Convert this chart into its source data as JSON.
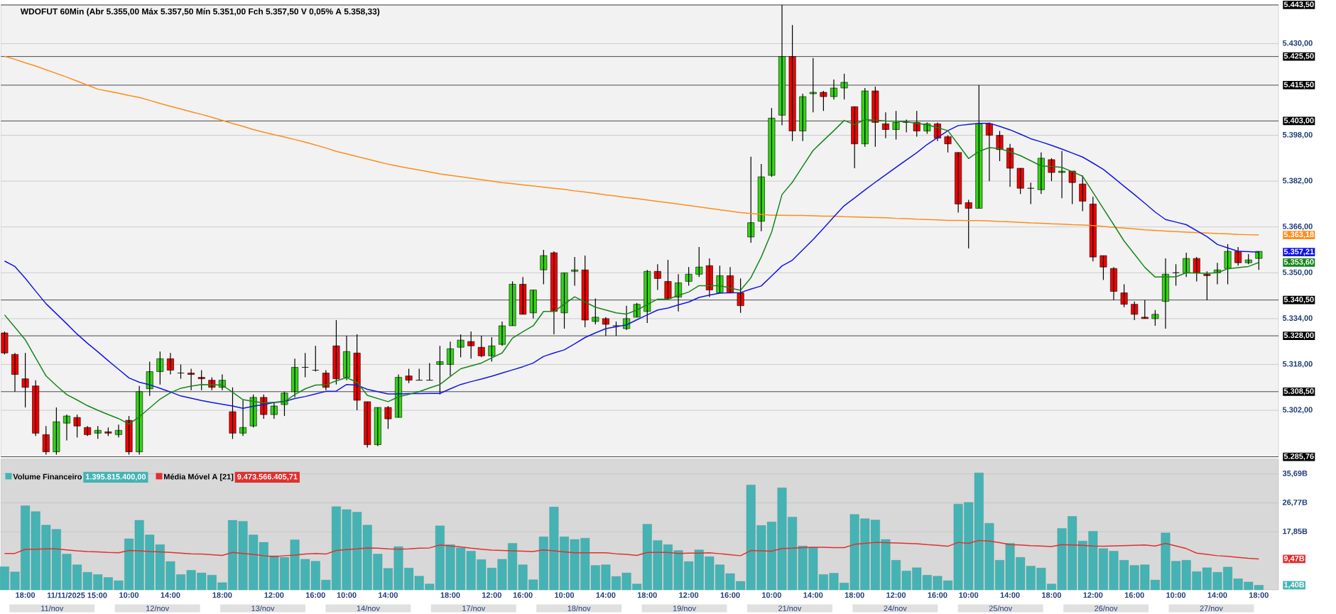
{
  "chart_data": [
    {
      "type": "candlestick",
      "title": "WDOFUT 60Min (Abr 5.355,00 Máx 5.357,50 Mín 5.351,00 Fch 5.357,50 V 0,05% A 5.358,33)",
      "categories": [
        null,
        null,
        null,
        null,
        null,
        null,
        null,
        null,
        null,
        null,
        null,
        null,
        null,
        null,
        null,
        null,
        null,
        null,
        null,
        null,
        null,
        null,
        null,
        null,
        null,
        null,
        null,
        null,
        null,
        null,
        null,
        null,
        null,
        null,
        null,
        null,
        null,
        null,
        null,
        null,
        null,
        null,
        null,
        null,
        null,
        null,
        null,
        null,
        null,
        null,
        null,
        null,
        null,
        null,
        null,
        null,
        null,
        null,
        null,
        null,
        null,
        null,
        null,
        null,
        null,
        null,
        null,
        null,
        null,
        null,
        null,
        null,
        null,
        null,
        null,
        null,
        null,
        null,
        null,
        null,
        null,
        null,
        null,
        null,
        null,
        null,
        null,
        null,
        null,
        null,
        null,
        null,
        null,
        null,
        null,
        null,
        null,
        null,
        null,
        null,
        null,
        null,
        null,
        null,
        null,
        null,
        null,
        null,
        null,
        null,
        null,
        null,
        null,
        null,
        null,
        null,
        null,
        null,
        null,
        null,
        null,
        null
      ],
      "ohlc": [
        [
          5329,
          5329.5,
          5321.5,
          5322
        ],
        [
          5321.5,
          5322,
          5308.5,
          5314.5
        ],
        [
          5313,
          5322,
          5303,
          5310
        ],
        [
          5310.5,
          5312.5,
          5293,
          5294
        ],
        [
          5293.5,
          5296.5,
          5286.5,
          5287.5
        ],
        [
          5287.5,
          5303,
          5286.5,
          5298
        ],
        [
          5297.5,
          5300.5,
          5291.5,
          5300
        ],
        [
          5299.5,
          5300.5,
          5292.5,
          5296.5
        ],
        [
          5296,
          5296.5,
          5293,
          5293.5
        ],
        [
          5294,
          5296.5,
          5292,
          5295
        ],
        [
          5294.5,
          5296,
          5293,
          5294
        ],
        [
          5293.5,
          5297,
          5292.5,
          5295
        ],
        [
          5298.5,
          5300,
          5286.5,
          5287.5
        ],
        [
          5287.5,
          5310.5,
          5286.5,
          5308.5
        ],
        [
          5309.5,
          5319,
          5307,
          5315.5
        ],
        [
          5315.5,
          5322.5,
          5311,
          5320
        ],
        [
          5320,
          5322,
          5314.5,
          5316
        ],
        [
          5315,
          5318,
          5313,
          5315
        ],
        [
          5315,
          5316.5,
          5309,
          5314.5
        ],
        [
          5313.5,
          5316,
          5309,
          5313
        ],
        [
          5312.5,
          5313.5,
          5309,
          5310
        ],
        [
          5310,
          5314.5,
          5309,
          5312.5
        ],
        [
          5301.5,
          5310,
          5292,
          5294
        ],
        [
          5294,
          5305.5,
          5293,
          5296
        ],
        [
          5296.5,
          5307.5,
          5296,
          5306.5
        ],
        [
          5306.5,
          5307.5,
          5299,
          5300.5
        ],
        [
          5300.5,
          5305,
          5299,
          5303.5
        ],
        [
          5304,
          5308.5,
          5300,
          5308
        ],
        [
          5308.5,
          5320,
          5306.5,
          5317
        ],
        [
          5317,
          5322,
          5313.5,
          5317
        ],
        [
          5316,
          5324.5,
          5315.5,
          5316
        ],
        [
          5315,
          5316,
          5309,
          5310
        ],
        [
          5324.5,
          5333.5,
          5311,
          5313
        ],
        [
          5313.5,
          5328,
          5312.5,
          5322.5
        ],
        [
          5322,
          5328.5,
          5302,
          5305.5
        ],
        [
          5305,
          5305,
          5289,
          5290
        ],
        [
          5290,
          5303,
          5289.5,
          5303
        ],
        [
          5303,
          5303.5,
          5295.5,
          5299
        ],
        [
          5299.5,
          5314.5,
          5299.5,
          5313.5
        ],
        [
          5314,
          5316.5,
          5311.5,
          5312.5
        ],
        [
          5312.5,
          5316.5,
          5312.5,
          5312.5
        ],
        [
          5312.5,
          5318.5,
          5312.5,
          5312.5
        ],
        [
          5318,
          5324.5,
          5307.5,
          5319
        ],
        [
          5318,
          5326,
          5314,
          5323.5
        ],
        [
          5324,
          5328.5,
          5320.5,
          5326.5
        ],
        [
          5326,
          5329.5,
          5320,
          5324.5
        ],
        [
          5324,
          5328,
          5320.5,
          5321
        ],
        [
          5321,
          5327.5,
          5319,
          5324.5
        ],
        [
          5325,
          5333,
          5324.5,
          5331.5
        ],
        [
          5331.5,
          5347,
          5331.5,
          5346
        ],
        [
          5346,
          5348.5,
          5335.5,
          5335.5
        ],
        [
          5336,
          5344,
          5334,
          5344
        ],
        [
          5351,
          5358,
          5346,
          5356
        ],
        [
          5357,
          5357.5,
          5328.5,
          5336.5
        ],
        [
          5336,
          5350,
          5330.5,
          5350
        ],
        [
          5350.5,
          5355.5,
          5345.5,
          5351
        ],
        [
          5351,
          5356,
          5331,
          5333.5
        ],
        [
          5333,
          5341,
          5332,
          5334.5
        ],
        [
          5334,
          5334.5,
          5328,
          5332
        ],
        [
          5331.5,
          5333,
          5328,
          5331.5
        ],
        [
          5330.5,
          5338.5,
          5330,
          5334
        ],
        [
          5334.5,
          5339.5,
          5334.5,
          5339
        ],
        [
          5336.5,
          5351,
          5332.5,
          5350.5
        ],
        [
          5350.5,
          5353,
          5344,
          5348
        ],
        [
          5347,
          5354.5,
          5341,
          5341
        ],
        [
          5341.5,
          5349.5,
          5336.5,
          5346.5
        ],
        [
          5347,
          5352,
          5345.5,
          5349.5
        ],
        [
          5349.5,
          5359,
          5348.5,
          5352
        ],
        [
          5352.5,
          5355,
          5341.5,
          5344
        ],
        [
          5343,
          5352.5,
          5343,
          5349
        ],
        [
          5349,
          5352,
          5343,
          5343
        ],
        [
          5343,
          5348,
          5336,
          5338.5
        ],
        [
          5362.5,
          5390.5,
          5360.5,
          5367.5
        ],
        [
          5368,
          5388,
          5364.5,
          5383.5
        ],
        [
          5384,
          5407.5,
          5383.5,
          5404
        ],
        [
          5405,
          5443.5,
          5401.5,
          5425.5
        ],
        [
          5425.5,
          5436.5,
          5396,
          5399.5
        ],
        [
          5399.5,
          5412.5,
          5396,
          5411.5
        ],
        [
          5412.5,
          5425,
          5406,
          5413
        ],
        [
          5413,
          5413.5,
          5406.5,
          5411.5
        ],
        [
          5411.5,
          5417.5,
          5410.5,
          5414.5
        ],
        [
          5414.5,
          5419.5,
          5410.5,
          5416.5
        ],
        [
          5408,
          5408,
          5386.5,
          5395
        ],
        [
          5395,
          5414.5,
          5394,
          5413.5
        ],
        [
          5413.5,
          5415,
          5394,
          5402.5
        ],
        [
          5402,
          5406,
          5397,
          5400
        ],
        [
          5400,
          5406.5,
          5396.5,
          5402.5
        ],
        [
          5402.5,
          5403.5,
          5399,
          5402.5
        ],
        [
          5402.5,
          5406.5,
          5397.5,
          5399.5
        ],
        [
          5399.5,
          5402.5,
          5398.5,
          5402
        ],
        [
          5402,
          5402.5,
          5396,
          5397
        ],
        [
          5397.5,
          5398,
          5392,
          5395
        ],
        [
          5392,
          5392,
          5371,
          5374
        ],
        [
          5374.5,
          5375.5,
          5358.5,
          5372.5
        ],
        [
          5372.5,
          5415.5,
          5372.5,
          5402
        ],
        [
          5402,
          5402.5,
          5382,
          5398
        ],
        [
          5398,
          5399.5,
          5389,
          5393
        ],
        [
          5393.5,
          5395,
          5380,
          5386.5
        ],
        [
          5386.5,
          5386.5,
          5377.5,
          5379.5
        ],
        [
          5379.5,
          5381.5,
          5374,
          5379.5
        ],
        [
          5379,
          5392,
          5377.5,
          5390
        ],
        [
          5389.5,
          5390,
          5382,
          5385
        ],
        [
          5385,
          5392.5,
          5376,
          5385.5
        ],
        [
          5385.5,
          5385.5,
          5374,
          5381.5
        ],
        [
          5381,
          5384,
          5371.5,
          5375
        ],
        [
          5374,
          5376.5,
          5354,
          5355.5
        ],
        [
          5356,
          5356,
          5347.5,
          5352
        ],
        [
          5351.5,
          5352,
          5340.5,
          5343.5
        ],
        [
          5343,
          5346,
          5338,
          5339
        ],
        [
          5339,
          5340,
          5333.5,
          5335.5
        ],
        [
          5334.5,
          5340.5,
          5334,
          5334
        ],
        [
          5334,
          5337,
          5331.5,
          5335.5
        ],
        [
          5340,
          5355,
          5330.5,
          5349.5
        ],
        [
          5350,
          5353,
          5345.5,
          5350
        ],
        [
          5350,
          5357,
          5348.5,
          5355
        ],
        [
          5355,
          5355.5,
          5347,
          5350
        ],
        [
          5349.5,
          5350.5,
          5340.5,
          5349
        ],
        [
          5350,
          5353.5,
          5346,
          5351
        ],
        [
          5351.5,
          5360,
          5346,
          5357.5
        ],
        [
          5357.5,
          5359,
          5352.5,
          5353.5
        ],
        [
          5353.5,
          5356.5,
          5353,
          5354.5
        ],
        [
          5355,
          5357.5,
          5351,
          5357.5
        ]
      ],
      "series": [
        {
          "type": "line",
          "color": "#ff8c1a",
          "values": [
            5425.6,
            5424.5,
            5423.3,
            5422.2,
            5420.9,
            5419.6,
            5418.3,
            5416.9,
            5415.5,
            5414.1,
            5413.4,
            5412.7,
            5411.9,
            5411.2,
            5410.2,
            5409.1,
            5408.1,
            5407.2,
            5406.2,
            5405.3,
            5404.3,
            5403.2,
            5402.1,
            5401.1,
            5400,
            5399.1,
            5398.2,
            5397.4,
            5396.5,
            5395.6,
            5394.6,
            5393.6,
            5392.4,
            5391.5,
            5390.6,
            5389.7,
            5388.8,
            5387.9,
            5387.2,
            5386.5,
            5385.9,
            5385.2,
            5384.5,
            5384,
            5383.5,
            5383,
            5382.5,
            5382,
            5381.5,
            5381.1,
            5380.7,
            5380.3,
            5379.9,
            5379.5,
            5379.1,
            5378.6,
            5378.2,
            5377.7,
            5377.2,
            5376.8,
            5376.3,
            5375.9,
            5375.4,
            5374.9,
            5374.5,
            5374,
            5373.5,
            5373,
            5372.5,
            5372,
            5371.5,
            5371,
            5370.7,
            5370.4,
            5370.1,
            5370.1,
            5370,
            5370,
            5369.9,
            5369.8,
            5369.8,
            5369.6,
            5369.5,
            5369.4,
            5369.3,
            5369.2,
            5369,
            5368.9,
            5368.7,
            5368.6,
            5368.5,
            5368.3,
            5368.3,
            5368.2,
            5368.2,
            5368.1,
            5367.9,
            5367.8,
            5367.6,
            5367.4,
            5367.3,
            5367.1,
            5367,
            5366.8,
            5366.7,
            5366.5,
            5366.2,
            5365.9,
            5365.6,
            5365.3,
            5365,
            5364.8,
            5364.6,
            5364.4,
            5364.2,
            5364,
            5363.9,
            5363.7,
            5363.6,
            5363.4,
            5363.3,
            5363.2
          ]
        },
        {
          "type": "line",
          "color": "#1414e6",
          "values": [
            5354.1,
            5352.2,
            5348.1,
            5343.6,
            5339.2,
            5335.7,
            5332.2,
            5328.6,
            5325.4,
            5322.4,
            5319.3,
            5316.3,
            5313.3,
            5311.8,
            5310.9,
            5309.7,
            5308.4,
            5307,
            5306.2,
            5305.4,
            5304.7,
            5304.1,
            5303.5,
            5302.7,
            5303.4,
            5304,
            5304.7,
            5305.1,
            5306.1,
            5306.8,
            5307.7,
            5308.6,
            5308.7,
            5311,
            5310.8,
            5309.3,
            5308.5,
            5307.7,
            5307.7,
            5307.8,
            5307.8,
            5307.9,
            5307.9,
            5309.5,
            5311,
            5312,
            5312.9,
            5313.9,
            5315,
            5316.1,
            5317.2,
            5318.5,
            5320.8,
            5322,
            5323.1,
            5325.2,
            5327.4,
            5329,
            5330.5,
            5331.2,
            5331.8,
            5333.6,
            5335.3,
            5337,
            5337.7,
            5338.8,
            5339.8,
            5341.4,
            5342.2,
            5342.9,
            5343,
            5343.1,
            5344.3,
            5345.4,
            5348.9,
            5352.4,
            5354.4,
            5358,
            5361.6,
            5365.5,
            5369.5,
            5373.4,
            5376.1,
            5378.9,
            5381.6,
            5384.2,
            5386.8,
            5389.4,
            5391.9,
            5394.8,
            5397.2,
            5399.6,
            5401.4,
            5401.8,
            5402.2,
            5402.2,
            5401.1,
            5399.9,
            5398.4,
            5396.8,
            5395.7,
            5394.5,
            5393.2,
            5391.8,
            5390.4,
            5388.3,
            5386.1,
            5383.2,
            5380.2,
            5377.3,
            5374.3,
            5371.2,
            5368.6,
            5367.7,
            5366.8,
            5364.7,
            5362.6,
            5359.9,
            5358.7,
            5357.5,
            5357.4,
            5357.2
          ]
        },
        {
          "type": "line",
          "color": "#16861a",
          "values": [
            5335.3,
            5331,
            5326.6,
            5320.3,
            5314,
            5310.6,
            5307.5,
            5305.6,
            5303.6,
            5302,
            5300.5,
            5299.1,
            5297.2,
            5299.7,
            5302.8,
            5305.9,
            5308.1,
            5309.7,
            5310.4,
            5311,
            5310.9,
            5310.8,
            5308.3,
            5305.7,
            5305.1,
            5304.6,
            5304.8,
            5305,
            5307.5,
            5309.5,
            5310.8,
            5310.9,
            5312.3,
            5313.4,
            5311.8,
            5307.2,
            5306.1,
            5305,
            5306.7,
            5307.6,
            5308.5,
            5309.8,
            5311,
            5313.8,
            5316.5,
            5317.5,
            5318.5,
            5320.3,
            5322,
            5327.2,
            5329.4,
            5331.5,
            5336.5,
            5336.5,
            5339.1,
            5341.6,
            5339.8,
            5338,
            5337,
            5336,
            5335.6,
            5337,
            5338.9,
            5340.8,
            5340.8,
            5342.1,
            5343.3,
            5345.5,
            5345.5,
            5345.5,
            5344.7,
            5343.9,
            5348.3,
            5355.5,
            5364.2,
            5377.3,
            5381.6,
            5387.2,
            5392.7,
            5396.2,
            5399.6,
            5403.2,
            5401.7,
            5403.5,
            5403.3,
            5403,
            5402.9,
            5402.7,
            5402.2,
            5401.7,
            5400.7,
            5399.6,
            5394.8,
            5389.9,
            5392.4,
            5393.7,
            5393.4,
            5392.2,
            5390.9,
            5389.1,
            5387.3,
            5387.1,
            5386.8,
            5385.3,
            5383.7,
            5378.1,
            5372.4,
            5366.8,
            5361.1,
            5356.5,
            5351.9,
            5348.5,
            5348.6,
            5348.6,
            5350,
            5349.9,
            5349.8,
            5350,
            5351.4,
            5351.8,
            5352.2,
            5353.6
          ]
        }
      ],
      "ylim": [
        5285.76,
        5443.5
      ],
      "yticks": [
        {
          "value": 5430,
          "label": "5.430,00"
        },
        {
          "value": 5398,
          "label": "5.398,00"
        },
        {
          "value": 5382,
          "label": "5.382,00"
        },
        {
          "value": 5366,
          "label": "5.366,00"
        },
        {
          "value": 5350,
          "label": "5.350,00"
        },
        {
          "value": 5334,
          "label": "5.334,00"
        },
        {
          "value": 5318,
          "label": "5.318,00"
        },
        {
          "value": 5302,
          "label": "5.302,00"
        }
      ],
      "grid": "y",
      "tick_labels": "y",
      "ref_lines": [
        {
          "axis": "y",
          "value": 5443.5,
          "label": "5.443,50",
          "color": "#000000"
        },
        {
          "axis": "y",
          "value": 5425.5,
          "label": "5.425,50",
          "color": "#000000"
        },
        {
          "axis": "y",
          "value": 5415.5,
          "label": "5.415,50",
          "color": "#000000"
        },
        {
          "axis": "y",
          "value": 5403,
          "label": "5.403,00",
          "color": "#000000"
        },
        {
          "axis": "y",
          "value": 5340.5,
          "label": "5.340,50",
          "color": "#000000"
        },
        {
          "axis": "y",
          "value": 5328,
          "label": "5.328,00",
          "color": "#000000"
        },
        {
          "axis": "y",
          "value": 5308.5,
          "label": "5.308,50",
          "color": "#000000"
        },
        {
          "axis": "y",
          "value": 5285.76,
          "label": "5.285,76",
          "color": "#000000"
        }
      ],
      "annotations": [
        "5.363,18",
        "5.357,21",
        "5.353,60"
      ]
    },
    {
      "type": "bar",
      "categories": [
        null,
        null,
        "18:00",
        null,
        null,
        null,
        null,
        "11/11/2025 15:00",
        null,
        null,
        null,
        null,
        "10:00",
        null,
        null,
        null,
        "14:00",
        null,
        null,
        null,
        null,
        "18:00",
        null,
        null,
        null,
        null,
        "12:00",
        null,
        null,
        null,
        "16:00",
        null,
        null,
        "10:00",
        null,
        null,
        null,
        "14:00",
        null,
        null,
        null,
        null,
        null,
        "18:00",
        null,
        null,
        null,
        "12:00",
        null,
        null,
        "16:00",
        null,
        null,
        null,
        "10:00",
        null,
        null,
        null,
        "14:00",
        null,
        null,
        null,
        "18:00",
        null,
        null,
        null,
        "12:00",
        null,
        null,
        null,
        "16:00",
        null,
        null,
        null,
        "10:00",
        null,
        null,
        null,
        "14:00",
        null,
        null,
        null,
        "18:00",
        null,
        null,
        null,
        "12:00",
        null,
        null,
        null,
        "16:00",
        null,
        null,
        "10:00",
        null,
        null,
        null,
        "14:00",
        null,
        null,
        null,
        "18:00",
        null,
        null,
        null,
        "12:00",
        null,
        null,
        null,
        "16:00",
        null,
        null,
        null,
        "10:00",
        null,
        null,
        null,
        "14:00",
        null,
        null,
        null,
        "18:00"
      ],
      "series": [
        {
          "name": "Volume Financeiro",
          "type": "bar",
          "color": "#45b3b3",
          "values": [
            7.1,
            5.5,
            25.9,
            24.1,
            19.9,
            18.6,
            11.0,
            7.7,
            5.4,
            4.7,
            3.8,
            2.8,
            15.7,
            21.4,
            16.9,
            13.9,
            8.7,
            4.7,
            6.0,
            5.2,
            4.5,
            2.2,
            21.4,
            21.1,
            16.9,
            14.6,
            10.5,
            10.0,
            15.4,
            9.4,
            8.8,
            3.0,
            25.6,
            24.7,
            23.9,
            19.9,
            11.0,
            6.6,
            13.3,
            6.7,
            4.2,
            1.8,
            19.7,
            13.9,
            12.9,
            11.9,
            9.3,
            6.7,
            9.4,
            14.3,
            7.7,
            3.1,
            16.3,
            25.5,
            16.3,
            15.5,
            15.9,
            7.5,
            7.7,
            4.1,
            5.2,
            1.8,
            20.2,
            15.2,
            13.9,
            12.1,
            8.7,
            12.3,
            10.2,
            7.7,
            5.0,
            2.6,
            32.3,
            19.8,
            20.9,
            31.4,
            22.4,
            13.5,
            13.1,
            4.7,
            5.1,
            2.1,
            23.2,
            21.9,
            21.5,
            15.5,
            9.1,
            5.8,
            6.8,
            4.5,
            4.2,
            2.8,
            26.4,
            26.9,
            36.0,
            20.5,
            9.1,
            14.3,
            10.0,
            7.3,
            6.7,
            1.8,
            18.9,
            22.6,
            15.0,
            18.0,
            12.7,
            11.9,
            9.1,
            7.5,
            7.7,
            3.0,
            17.5,
            8.8,
            9.1,
            5.6,
            6.8,
            5.4,
            7.0,
            3.4,
            2.4,
            1.4
          ]
        },
        {
          "name": "Média Móvel A [21]",
          "type": "line",
          "color": "#e03030",
          "values": [
            11.2,
            11.2,
            12.5,
            12.5,
            12.6,
            12.6,
            12.3,
            12.0,
            11.8,
            11.7,
            11.5,
            11.4,
            12.1,
            12.0,
            11.8,
            11.7,
            11.5,
            11.3,
            11.1,
            11.0,
            10.8,
            10.6,
            11.5,
            11.2,
            10.9,
            10.5,
            10.2,
            10.5,
            10.7,
            11.0,
            11.2,
            11.0,
            12.1,
            12.4,
            12.6,
            12.9,
            12.8,
            12.6,
            12.5,
            12.6,
            12.8,
            12.9,
            13.8,
            13.5,
            13.2,
            12.8,
            12.5,
            12.2,
            12.1,
            12.0,
            11.9,
            11.8,
            12.3,
            12.0,
            11.7,
            11.4,
            11.4,
            11.4,
            11.4,
            11.1,
            10.9,
            10.6,
            11.5,
            11.5,
            11.5,
            11.2,
            11.3,
            11.3,
            11.4,
            11.1,
            10.8,
            10.5,
            12.1,
            12.0,
            11.9,
            12.7,
            12.8,
            13.0,
            13.1,
            13.1,
            13.0,
            13.0,
            14.0,
            14.3,
            14.6,
            14.5,
            14.4,
            14.3,
            14.2,
            13.9,
            13.7,
            13.4,
            14.6,
            14.3,
            15.2,
            15.0,
            14.5,
            13.9,
            13.8,
            13.6,
            13.5,
            13.3,
            13.9,
            13.8,
            13.7,
            13.5,
            13.4,
            13.5,
            13.6,
            13.7,
            13.8,
            13.5,
            14.3,
            13.5,
            12.7,
            11.3,
            10.9,
            10.5,
            10.3,
            10.0,
            9.7,
            9.5
          ]
        }
      ],
      "ylim": [
        0,
        40.3
      ],
      "yticks": [
        {
          "value": 35.69,
          "label": "35,69B"
        },
        {
          "value": 26.77,
          "label": "26,77B"
        },
        {
          "value": 17.85,
          "label": "17,85B"
        }
      ],
      "grid": "y",
      "legend": "top left",
      "annotations": [
        "1.395.815.400,00",
        "9.473.566.405,71",
        "1,40B",
        "9,47B",
        "11/nov",
        "12/nov",
        "13/nov",
        "14/nov",
        "17/nov",
        "18/nov",
        "19/nov",
        "21/nov",
        "24/nov",
        "25/nov",
        "26/nov",
        "27/nov"
      ]
    }
  ]
}
